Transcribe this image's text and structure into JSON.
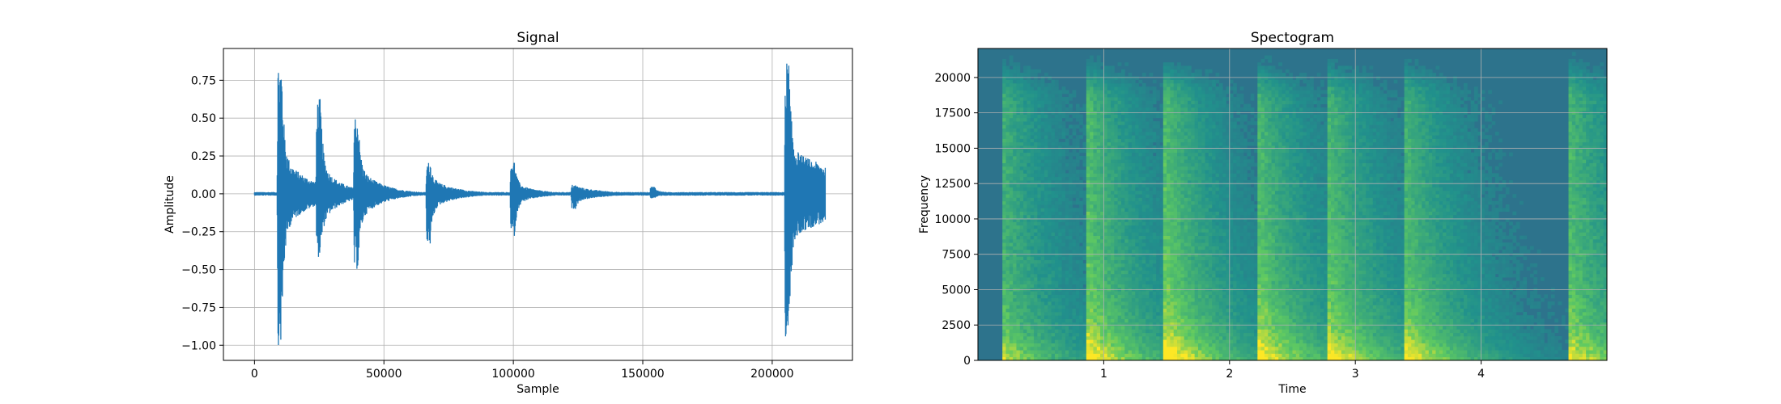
{
  "chart_data": [
    {
      "type": "line",
      "title": "Signal",
      "xlabel": "Sample",
      "ylabel": "Amplitude",
      "xlim": [
        -12000,
        231000
      ],
      "ylim": [
        -1.1,
        0.96
      ],
      "grid": true,
      "x_ticks": [
        0,
        50000,
        100000,
        150000,
        200000
      ],
      "x_tick_labels": [
        "0",
        "50000",
        "100000",
        "150000",
        "200000"
      ],
      "y_ticks": [
        0.75,
        0.5,
        0.25,
        0.0,
        -0.25,
        -0.5,
        -0.75,
        -1.0
      ],
      "y_tick_labels": [
        "0.75",
        "0.50",
        "0.25",
        "0.00",
        "−0.25",
        "−0.50",
        "−0.75",
        "−1.00"
      ],
      "series_color": "#1f77b4",
      "n_samples": 220500,
      "noise_floor": 0.012,
      "onsets": [
        {
          "sample": 9000,
          "peak_pos": 0.88,
          "peak_neg": -1.0,
          "sustain": 0.26,
          "decay_samples": 11000
        },
        {
          "sample": 24000,
          "peak_pos": 0.63,
          "peak_neg": -0.42,
          "sustain": 0.2,
          "decay_samples": 8000
        },
        {
          "sample": 38500,
          "peak_pos": 0.53,
          "peak_neg": -0.5,
          "sustain": 0.18,
          "decay_samples": 9000
        },
        {
          "sample": 66500,
          "peak_pos": 0.21,
          "peak_neg": -0.34,
          "sustain": 0.1,
          "decay_samples": 10000
        },
        {
          "sample": 99000,
          "peak_pos": 0.22,
          "peak_neg": -0.28,
          "sustain": 0.07,
          "decay_samples": 9000
        },
        {
          "sample": 122500,
          "peak_pos": 0.06,
          "peak_neg": -0.1,
          "sustain": 0.05,
          "decay_samples": 12000
        },
        {
          "sample": 153000,
          "peak_pos": 0.05,
          "peak_neg": -0.03,
          "sustain": 0.02,
          "decay_samples": 10000
        },
        {
          "sample": 205000,
          "peak_pos": 0.88,
          "peak_neg": -1.0,
          "sustain": 0.3,
          "decay_samples": 30000
        }
      ]
    },
    {
      "type": "heatmap",
      "title": "Spectogram",
      "xlabel": "Time",
      "ylabel": "Frequency",
      "xlim": [
        0,
        5.0
      ],
      "ylim": [
        0,
        22050
      ],
      "grid": true,
      "x_ticks": [
        1,
        2,
        3,
        4
      ],
      "x_tick_labels": [
        "1",
        "2",
        "3",
        "4"
      ],
      "y_ticks": [
        0,
        2500,
        5000,
        7500,
        10000,
        12500,
        15000,
        17500,
        20000
      ],
      "y_tick_labels": [
        "0",
        "2500",
        "5000",
        "7500",
        "10000",
        "12500",
        "15000",
        "17500",
        "20000"
      ],
      "colormap": [
        "#440154",
        "#3b528b",
        "#21918c",
        "#5ec962",
        "#fde725"
      ],
      "background_level": 0.38,
      "onsets_time": [
        0.2,
        0.88,
        1.5,
        2.23,
        2.78,
        3.4,
        4.7
      ],
      "onset_strength": [
        0.6,
        0.62,
        0.58,
        0.58,
        0.52,
        0.5,
        0.66
      ]
    }
  ]
}
